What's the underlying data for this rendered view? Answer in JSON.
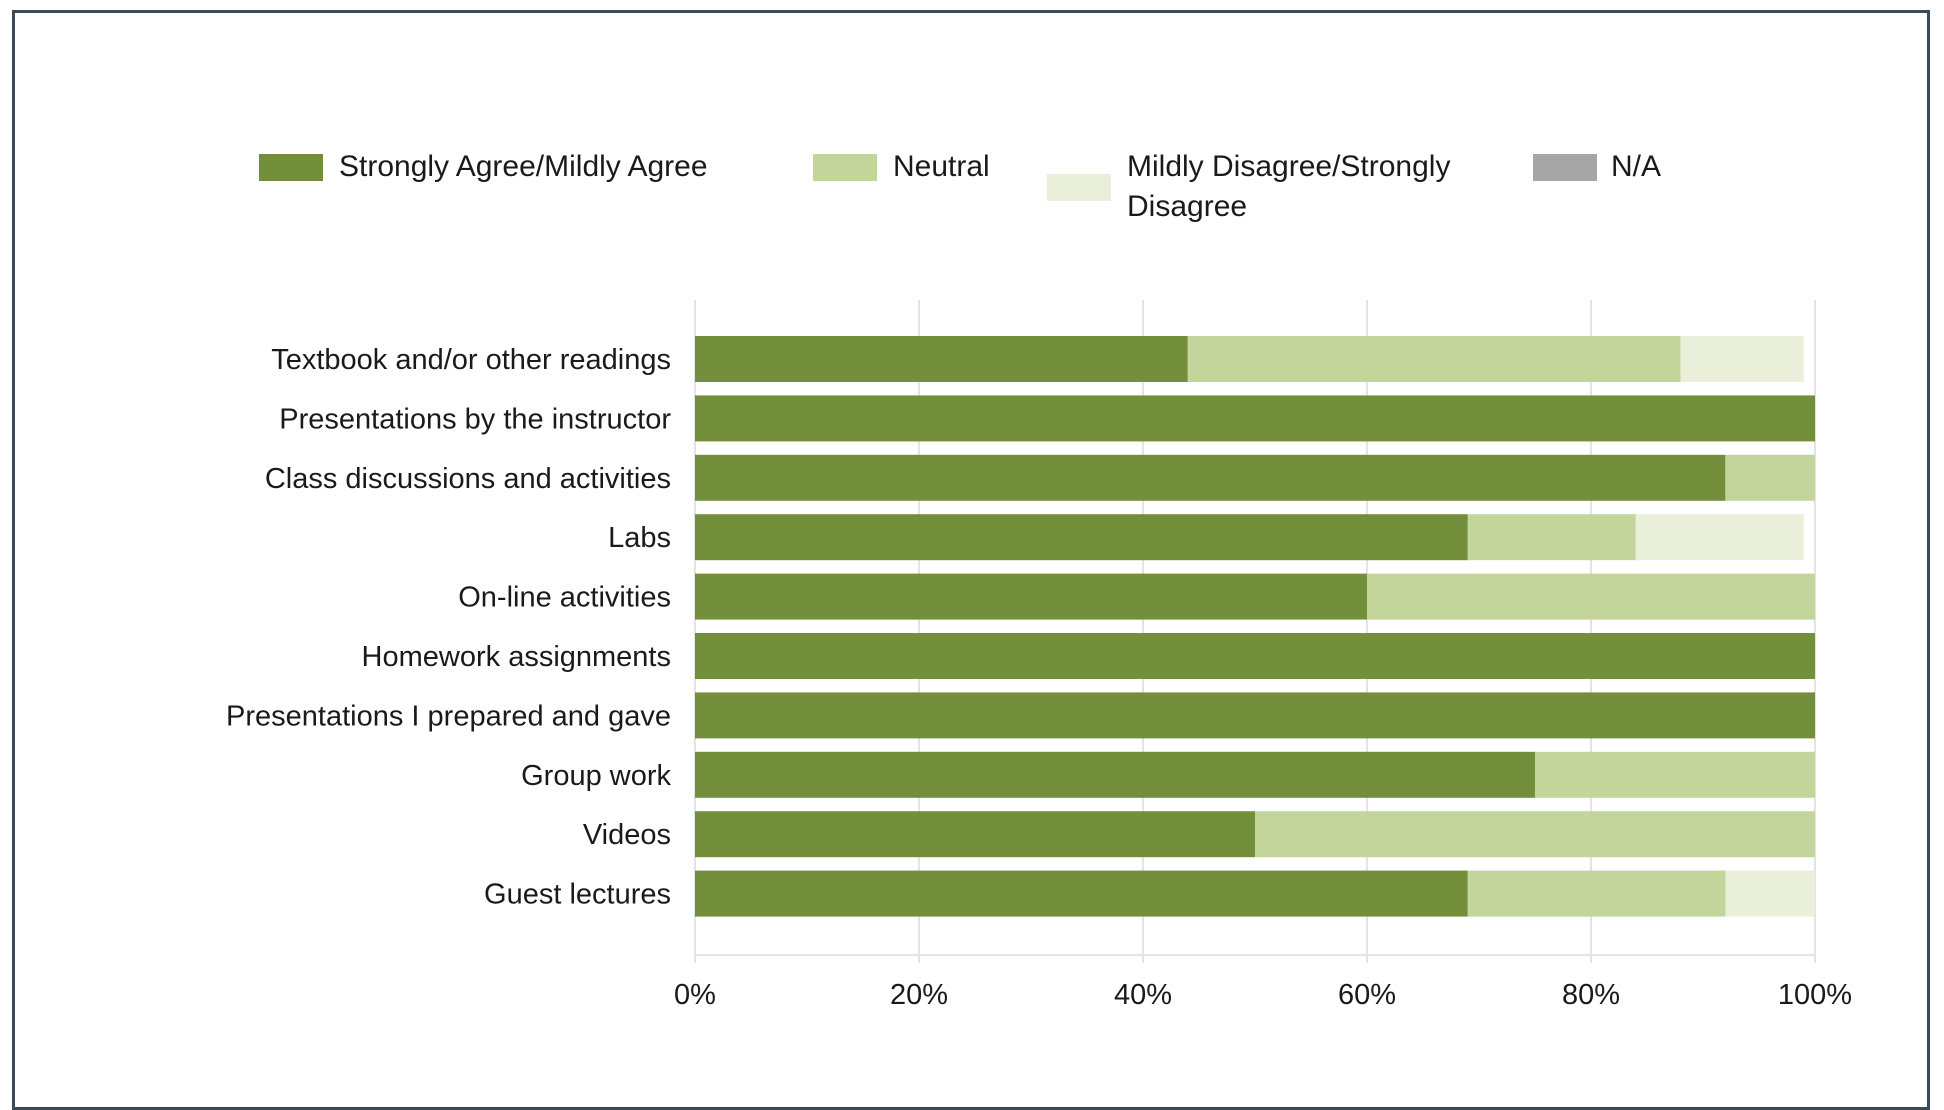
{
  "chart_data": {
    "type": "bar",
    "orientation": "horizontal",
    "stacked": true,
    "categories": [
      "Textbook and/or other readings",
      "Presentations by the instructor",
      "Class discussions and activities",
      "Labs",
      "On-line activities",
      "Homework assignments",
      "Presentations I prepared and gave",
      "Group work",
      "Videos",
      "Guest lectures"
    ],
    "series": [
      {
        "name": "Strongly Agree/Mildly Agree",
        "color": "#748f3c",
        "values": [
          44,
          100,
          92,
          69,
          60,
          100,
          100,
          75,
          50,
          69
        ]
      },
      {
        "name": "Neutral",
        "color": "#c4d59c",
        "values": [
          44,
          0,
          8,
          15,
          40,
          0,
          0,
          25,
          50,
          23
        ]
      },
      {
        "name": "Mildly Disagree/Strongly Disagree",
        "color": "#e9efd9",
        "values": [
          11,
          0,
          0,
          15,
          0,
          0,
          0,
          0,
          0,
          8
        ]
      },
      {
        "name": "N/A",
        "color": "#a6a6a6",
        "values": [
          0,
          0,
          0,
          0,
          0,
          0,
          0,
          0,
          0,
          0
        ]
      }
    ],
    "xlim": [
      0,
      100
    ],
    "x_ticks": [
      "0%",
      "20%",
      "40%",
      "60%",
      "80%",
      "100%"
    ],
    "grid": true,
    "legend_position": "top"
  }
}
